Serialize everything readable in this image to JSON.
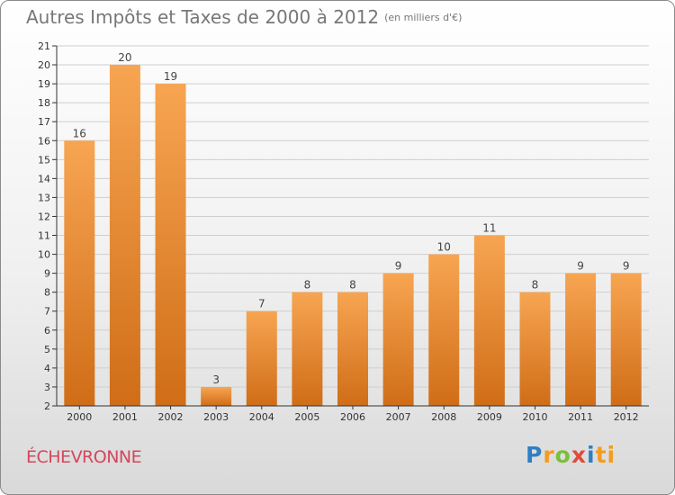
{
  "title": "Autres Impôts et Taxes de 2000 à 2012",
  "unit": "(en milliers d'€)",
  "commune": "ÉCHEVRONNE",
  "logo": [
    "P",
    "r",
    "o",
    "x",
    "i",
    "ti"
  ],
  "colors": {
    "bar_light": "#f7a552",
    "bar_dark": "#d06d17",
    "axis": "#333333",
    "grid": "#cfcfcf"
  },
  "chart_data": {
    "type": "bar",
    "categories": [
      "2000",
      "2001",
      "2002",
      "2003",
      "2004",
      "2005",
      "2006",
      "2007",
      "2008",
      "2009",
      "2010",
      "2011",
      "2012"
    ],
    "values": [
      16,
      20,
      19,
      3,
      7,
      8,
      8,
      9,
      10,
      11,
      8,
      9,
      9
    ],
    "ylim": [
      2,
      21
    ],
    "yticks": [
      2,
      3,
      4,
      5,
      6,
      7,
      8,
      9,
      10,
      11,
      12,
      13,
      14,
      15,
      16,
      17,
      18,
      19,
      20,
      21
    ],
    "grid": true,
    "xlabel": "",
    "ylabel": ""
  }
}
